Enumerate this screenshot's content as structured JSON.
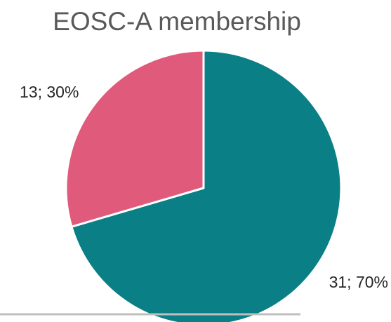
{
  "chart_data": {
    "type": "pie",
    "title": "EOSC-A membership",
    "slices": [
      {
        "value": 31,
        "percent": 70,
        "label": "31; 70%",
        "color": "#0b7f86"
      },
      {
        "value": 13,
        "percent": 30,
        "label": "13; 30%",
        "color": "#e05a7b"
      }
    ],
    "start_angle_deg": 0,
    "direction": "clockwise",
    "border_color": "#ffffff"
  }
}
